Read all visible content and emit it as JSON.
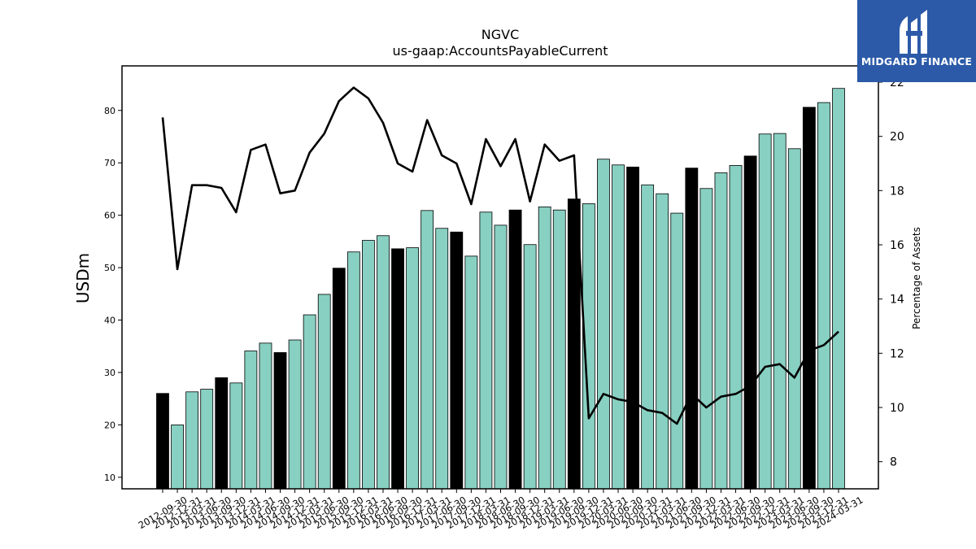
{
  "chart_data": {
    "type": "bar+line",
    "title": "NGVC",
    "subtitle": "us-gaap:AccountsPayableCurrent",
    "ylabel": "USDm",
    "y2label": "Percentage of Assets",
    "ylim": [
      7.8,
      88.5
    ],
    "y2lim": [
      7.0,
      22.6
    ],
    "yticks": [
      10,
      20,
      30,
      40,
      50,
      60,
      70,
      80
    ],
    "y2ticks": [
      8,
      10,
      12,
      14,
      16,
      18,
      20,
      22
    ],
    "colors": {
      "bar": "#88d0c2",
      "bar_fy": "#000000",
      "line": "#000000"
    },
    "categories": [
      "2012-09-30",
      "2012-12-31",
      "2013-03-31",
      "2013-06-30",
      "2013-09-30",
      "2013-12-31",
      "2014-03-31",
      "2014-06-30",
      "2014-09-30",
      "2014-12-31",
      "2015-03-31",
      "2015-06-30",
      "2015-09-30",
      "2015-12-31",
      "2016-03-31",
      "2016-06-30",
      "2016-09-30",
      "2016-12-31",
      "2017-03-31",
      "2017-06-30",
      "2017-09-30",
      "2017-12-31",
      "2018-03-31",
      "2018-06-30",
      "2018-09-30",
      "2018-12-31",
      "2019-03-31",
      "2019-06-30",
      "2019-09-30",
      "2019-12-31",
      "2020-03-31",
      "2020-06-30",
      "2020-09-30",
      "2020-12-31",
      "2021-03-31",
      "2021-06-30",
      "2021-09-30",
      "2021-12-31",
      "2022-03-31",
      "2022-06-30",
      "2022-09-30",
      "2022-12-31",
      "2023-03-31",
      "2023-06-30",
      "2023-09-30",
      "2023-12-31",
      "2024-03-31"
    ],
    "values": [
      26.0,
      20.0,
      26.3,
      26.8,
      29.0,
      28.0,
      34.1,
      35.6,
      33.8,
      36.2,
      41.0,
      44.9,
      49.9,
      53.0,
      55.2,
      56.1,
      53.6,
      53.8,
      60.9,
      57.5,
      56.8,
      52.2,
      60.6,
      58.1,
      61.0,
      54.4,
      61.6,
      61.0,
      63.1,
      62.2,
      70.7,
      69.6,
      69.2,
      65.8,
      64.1,
      60.4,
      69.0,
      65.1,
      68.1,
      69.5,
      71.3,
      75.5,
      75.6,
      72.7,
      80.6,
      81.5,
      84.2
    ],
    "fiscal_year_end": [
      true,
      false,
      false,
      false,
      true,
      false,
      false,
      false,
      true,
      false,
      false,
      false,
      true,
      false,
      false,
      false,
      true,
      false,
      false,
      false,
      true,
      false,
      false,
      false,
      true,
      false,
      false,
      false,
      true,
      false,
      false,
      false,
      true,
      false,
      false,
      false,
      true,
      false,
      false,
      false,
      true,
      false,
      false,
      false,
      true,
      false,
      false
    ],
    "percentage_of_assets": [
      20.7,
      15.1,
      18.2,
      18.2,
      18.1,
      17.2,
      19.5,
      19.7,
      17.9,
      18.0,
      19.4,
      20.1,
      21.3,
      21.8,
      21.4,
      20.5,
      19.0,
      18.7,
      20.6,
      19.3,
      19.0,
      17.5,
      19.9,
      18.9,
      19.9,
      17.6,
      19.7,
      19.1,
      19.3,
      9.6,
      10.5,
      10.3,
      10.2,
      9.9,
      9.8,
      9.4,
      10.5,
      10.0,
      10.4,
      10.5,
      10.8,
      11.5,
      11.6,
      11.1,
      12.1,
      12.3,
      12.8
    ]
  },
  "logo": {
    "text": "MIDGARD FINANCE"
  }
}
